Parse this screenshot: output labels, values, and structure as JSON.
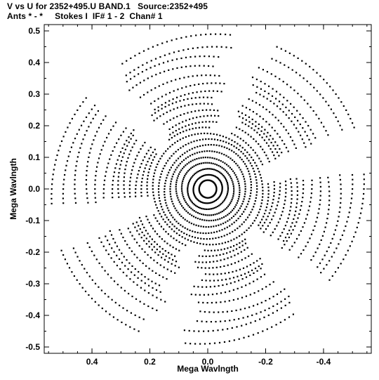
{
  "header": {
    "line1": "V vs U for 2352+495.U BAND.1   Source:2352+495",
    "line2": "Ants * - *     Stokes I  IF# 1 - 2  Chan# 1"
  },
  "chart_data": {
    "type": "scatter",
    "title": "V vs U for 2352+495.U BAND.1   Source:2352+495",
    "subtitle": "Ants * - *     Stokes I  IF# 1 - 2  Chan# 1",
    "xlabel": "Mega Wavlngth",
    "ylabel": "Mega Wavlngth",
    "xlim": [
      0.565,
      -0.565
    ],
    "ylim": [
      -0.52,
      0.52
    ],
    "x_reversed": true,
    "xticks": [
      0.4,
      0.2,
      0.0,
      -0.2,
      -0.4
    ],
    "xtick_labels": [
      "0.4",
      "0.2",
      "0.0",
      "-0.2",
      "-0.4"
    ],
    "yticks": [
      0.5,
      0.4,
      0.3,
      0.2,
      0.1,
      0.0,
      -0.1,
      -0.2,
      -0.3,
      -0.4,
      -0.5
    ],
    "ytick_labels": [
      "0.5",
      "0.4",
      "0.3",
      "0.2",
      "0.1",
      "0.0",
      "-0.1",
      "-0.2",
      "-0.3",
      "-0.4",
      "-0.5"
    ],
    "grid": false,
    "marker_color": "#000000",
    "description_note": "Radial uv-coverage pattern: dense elliptical tracks reaching |u|~0.55, |v|~0.5; points are symmetric through origin.",
    "tracks": [
      {
        "u_radius": 0.03,
        "v_radius": 0.028
      },
      {
        "u_radius": 0.05,
        "v_radius": 0.045
      },
      {
        "u_radius": 0.07,
        "v_radius": 0.064
      },
      {
        "u_radius": 0.09,
        "v_radius": 0.083
      },
      {
        "u_radius": 0.11,
        "v_radius": 0.1
      },
      {
        "u_radius": 0.13,
        "v_radius": 0.12
      },
      {
        "u_radius": 0.15,
        "v_radius": 0.14
      },
      {
        "u_radius": 0.17,
        "v_radius": 0.158
      },
      {
        "u_radius": 0.19,
        "v_radius": 0.176
      },
      {
        "u_radius": 0.21,
        "v_radius": 0.195
      },
      {
        "u_radius": 0.23,
        "v_radius": 0.213
      },
      {
        "u_radius": 0.25,
        "v_radius": 0.232
      },
      {
        "u_radius": 0.27,
        "v_radius": 0.25
      },
      {
        "u_radius": 0.29,
        "v_radius": 0.27
      },
      {
        "u_radius": 0.31,
        "v_radius": 0.29
      },
      {
        "u_radius": 0.33,
        "v_radius": 0.31
      },
      {
        "u_radius": 0.36,
        "v_radius": 0.335
      },
      {
        "u_radius": 0.39,
        "v_radius": 0.36
      },
      {
        "u_radius": 0.42,
        "v_radius": 0.39
      },
      {
        "u_radius": 0.46,
        "v_radius": 0.42
      },
      {
        "u_radius": 0.5,
        "v_radius": 0.45
      },
      {
        "u_radius": 0.54,
        "v_radius": 0.49
      }
    ],
    "arm_directions_deg": [
      15,
      75,
      135,
      195,
      255,
      315
    ],
    "arm_half_width_deg": 22
  }
}
